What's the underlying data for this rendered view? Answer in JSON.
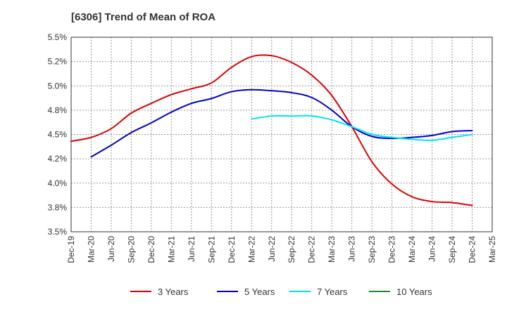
{
  "chart_data": {
    "type": "line",
    "title": "[6306]  Trend of Mean of ROA",
    "xlabel": "",
    "ylabel": "",
    "ylim": [
      3.5,
      5.5
    ],
    "yticks": [
      3.5,
      3.75,
      4.0,
      4.25,
      4.5,
      4.75,
      5.0,
      5.25,
      5.5
    ],
    "ytick_labels": [
      "3.5%",
      "3.8%",
      "4.0%",
      "4.2%",
      "4.5%",
      "4.8%",
      "5.0%",
      "5.2%",
      "5.5%"
    ],
    "categories": [
      "Dec-19",
      "Mar-20",
      "Jun-20",
      "Sep-20",
      "Dec-20",
      "Mar-21",
      "Jun-21",
      "Sep-21",
      "Dec-21",
      "Mar-22",
      "Jun-22",
      "Sep-22",
      "Dec-22",
      "Mar-23",
      "Jun-23",
      "Sep-23",
      "Dec-23",
      "Mar-24",
      "Jun-24",
      "Sep-24",
      "Dec-24",
      "Mar-25"
    ],
    "grid": true,
    "legend_position": "bottom",
    "series": [
      {
        "name": "3 Years",
        "color": "#dd0000",
        "values": [
          4.43,
          4.47,
          4.56,
          4.72,
          4.82,
          4.91,
          4.97,
          5.03,
          5.19,
          5.3,
          5.31,
          5.24,
          5.11,
          4.9,
          4.58,
          4.22,
          3.99,
          3.86,
          3.81,
          3.8,
          3.77,
          null
        ]
      },
      {
        "name": "5 Years",
        "color": "#0000cc",
        "values": [
          null,
          4.27,
          4.39,
          4.52,
          4.62,
          4.73,
          4.82,
          4.87,
          4.94,
          4.96,
          4.95,
          4.93,
          4.88,
          4.75,
          4.58,
          4.48,
          4.46,
          4.47,
          4.49,
          4.53,
          4.54,
          null
        ]
      },
      {
        "name": "7 Years",
        "color": "#00e5ee",
        "values": [
          null,
          null,
          null,
          null,
          null,
          null,
          null,
          null,
          null,
          4.66,
          4.69,
          4.69,
          4.69,
          4.65,
          4.58,
          4.5,
          4.47,
          4.45,
          4.44,
          4.47,
          4.5,
          null
        ]
      },
      {
        "name": "10 Years",
        "color": "#228b22",
        "values": [
          null,
          null,
          null,
          null,
          null,
          null,
          null,
          null,
          null,
          null,
          null,
          null,
          null,
          null,
          null,
          null,
          null,
          null,
          null,
          null,
          null,
          null
        ]
      }
    ]
  }
}
